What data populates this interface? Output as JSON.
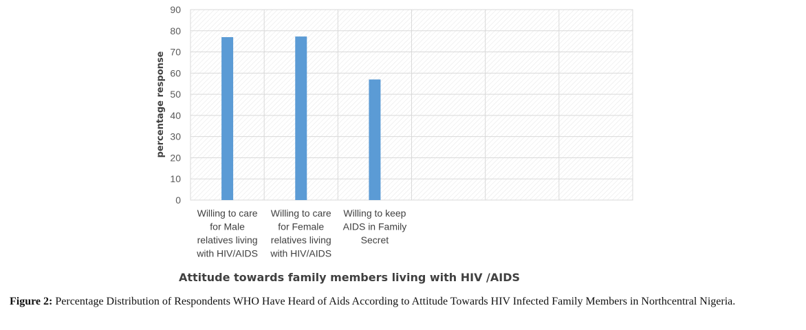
{
  "chart_data": {
    "type": "bar",
    "categories": [
      [
        "Willing to care",
        "for Male",
        "relatives living",
        "with HIV/AIDS"
      ],
      [
        "Willing to care",
        "for Female",
        "relatives living",
        "with HIV/AIDS"
      ],
      [
        "Willing to keep",
        "AIDS in Family",
        "Secret"
      ],
      [],
      [],
      []
    ],
    "values": [
      77,
      77.3,
      57,
      null,
      null,
      null
    ],
    "xlabel": "Attitude towards family members living with HIV /AIDS",
    "ylabel": "percentage response",
    "ylim": [
      0,
      90
    ],
    "yticks": [
      0,
      10,
      20,
      30,
      40,
      50,
      60,
      70,
      80,
      90
    ],
    "grid": true,
    "bar_color": "#5b9bd5",
    "gridline_color": "#d9d9d9"
  },
  "caption": {
    "label": "Figure 2:",
    "text": " Percentage Distribution of Respondents WHO Have Heard of Aids According to Attitude Towards HIV Infected Family Members in Northcentral Nigeria."
  }
}
